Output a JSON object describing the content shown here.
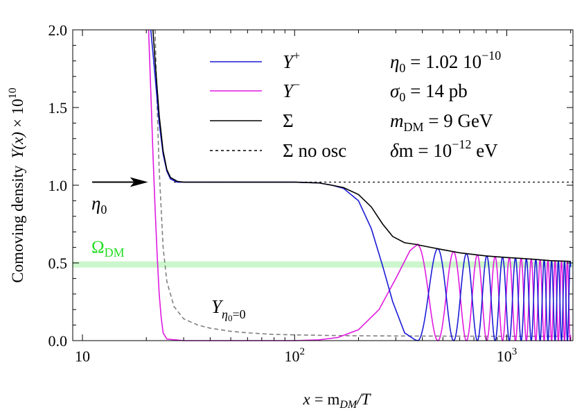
{
  "chart_data": {
    "type": "line",
    "title": "",
    "xscale": "log",
    "xlim": [
      9,
      2050
    ],
    "ylim": [
      0,
      2
    ],
    "xlabel": {
      "var": "x",
      "eq": "= m",
      "sub": "DM",
      "rest": "/T"
    },
    "ylabel": {
      "text": "Comoving density",
      "func": "Y(x)",
      "mult": "× 10",
      "exp": "10"
    },
    "yticks": [
      {
        "value": 0.0,
        "label": "0.0"
      },
      {
        "value": 0.5,
        "label": "0.5"
      },
      {
        "value": 1.0,
        "label": "1.0"
      },
      {
        "value": 1.5,
        "label": "1.5"
      },
      {
        "value": 2.0,
        "label": "2.0"
      }
    ],
    "xticks": [
      {
        "value": 10,
        "base": "10",
        "exp": ""
      },
      {
        "value": 100,
        "base": "10",
        "exp": "2"
      },
      {
        "value": 1000,
        "base": "10",
        "exp": "3"
      }
    ],
    "colors": {
      "y_plus": "#1a1ad6",
      "y_minus": "#e018e0",
      "sigma": "#000000",
      "sigma_no_osc": "#000000",
      "y_eta0": "#808080",
      "omega_band": "#8fec8f",
      "omega_label": "#22dd22"
    },
    "series": [
      {
        "id": "y_plus",
        "label_base": "Y",
        "label_sup": "+",
        "x": [
          21,
          22,
          23,
          24,
          25,
          26,
          28,
          30,
          40,
          60,
          100,
          130,
          150,
          170,
          200,
          230,
          260,
          290,
          330,
          370,
          380
        ],
        "y": [
          2.0,
          1.7,
          1.4,
          1.2,
          1.09,
          1.04,
          1.02,
          1.02,
          1.02,
          1.02,
          1.02,
          1.015,
          1.0,
          0.98,
          0.9,
          0.72,
          0.48,
          0.25,
          0.05,
          0.005,
          0.0
        ]
      },
      {
        "id": "y_minus",
        "label_base": "Y",
        "label_sup": "−",
        "x": [
          20.5,
          21,
          21.5,
          22,
          22.5,
          23,
          23.5,
          24,
          25,
          30,
          50,
          80,
          100,
          130,
          160,
          200,
          250,
          300,
          350,
          380
        ],
        "y": [
          2.0,
          1.6,
          1.2,
          0.85,
          0.55,
          0.3,
          0.15,
          0.05,
          0.01,
          0.0,
          0.0,
          0.0,
          0.0,
          0.005,
          0.02,
          0.07,
          0.2,
          0.4,
          0.58,
          0.62
        ]
      },
      {
        "id": "sigma",
        "label_base": "Σ",
        "label_sup": "",
        "x": [
          21.5,
          22,
          23,
          24,
          25,
          26,
          28,
          30,
          40,
          60,
          100,
          130,
          150,
          170,
          200,
          230,
          260,
          290,
          330,
          370,
          420,
          500,
          600,
          800,
          1000,
          1300,
          1600,
          2000
        ],
        "y": [
          2.0,
          1.8,
          1.45,
          1.22,
          1.1,
          1.05,
          1.025,
          1.02,
          1.02,
          1.02,
          1.02,
          1.015,
          1.0,
          0.985,
          0.94,
          0.86,
          0.75,
          0.67,
          0.63,
          0.62,
          0.605,
          0.585,
          0.565,
          0.545,
          0.535,
          0.525,
          0.515,
          0.51
        ]
      },
      {
        "id": "sigma_no_osc",
        "label_base": "Σ no osc",
        "label_sup": "",
        "x": [
          27,
          2050
        ],
        "y": [
          1.02,
          1.02
        ]
      },
      {
        "id": "y_eta0",
        "label_base": "Y",
        "label_sub": "η",
        "label_subsub": "0",
        "label_eq": "=0",
        "x": [
          22,
          22.5,
          23,
          24,
          25,
          27,
          30,
          35,
          40,
          50,
          60,
          80,
          100,
          150,
          200,
          300,
          500,
          1000,
          2000
        ],
        "y": [
          2.0,
          1.5,
          1.1,
          0.6,
          0.38,
          0.22,
          0.14,
          0.1,
          0.08,
          0.06,
          0.05,
          0.04,
          0.037,
          0.033,
          0.031,
          0.03,
          0.029,
          0.028,
          0.028
        ]
      }
    ],
    "oscillation": {
      "x_start": 380,
      "x_end": 2000,
      "phase_start_rad": 0,
      "log_slope_rad": 1.3
    },
    "omega_band": {
      "y_low": 0.47,
      "y_high": 0.51,
      "label": "Ω",
      "label_sub": "DM"
    },
    "eta_arrow": {
      "value": 1.02,
      "x_from": 10,
      "x_to": 21,
      "label": "η",
      "label_sub": "0"
    },
    "parameters": [
      {
        "sym": "η",
        "sub": "0",
        "eq": " = 1.02 10",
        "sup": "−10",
        "tail": ""
      },
      {
        "sym": "σ",
        "sub": "0",
        "eq": " = 14 pb",
        "sup": "",
        "tail": ""
      },
      {
        "sym": "m",
        "sub": "DM",
        "eq": " = 9 GeV",
        "sup": "",
        "tail": ""
      },
      {
        "sym": "δ",
        "sub": "",
        "eq": "m = 10",
        "sup": "−12",
        "tail": " eV"
      }
    ]
  }
}
